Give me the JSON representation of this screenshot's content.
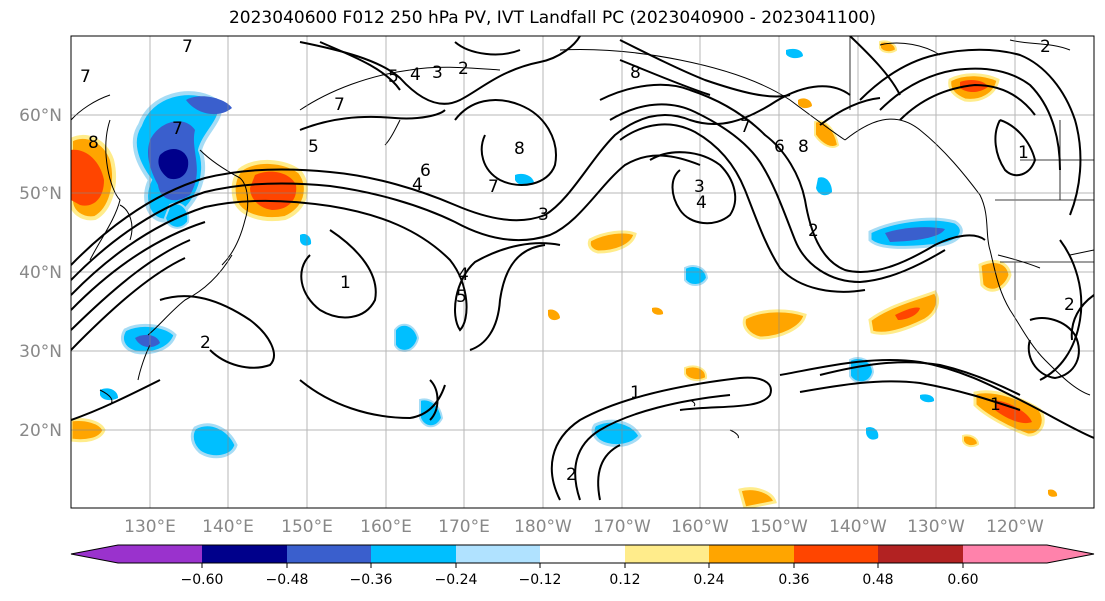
{
  "title": "2023040600 F012 250 hPa PV, IVT Landfall PC (2023040900 - 2023041100)",
  "map": {
    "lon_labels": [
      "130°E",
      "140°E",
      "150°E",
      "160°E",
      "170°E",
      "180°W",
      "170°W",
      "160°W",
      "150°W",
      "140°W",
      "130°W",
      "120°W"
    ],
    "lat_labels": [
      "60°N",
      "50°N",
      "40°N",
      "30°N",
      "20°N"
    ],
    "contour_labels": [
      "7",
      "7",
      "8",
      "5",
      "4",
      "3",
      "2",
      "7",
      "6",
      "5",
      "4",
      "7",
      "8",
      "7",
      "3",
      "1",
      "4",
      "5",
      "8",
      "8",
      "7",
      "6",
      "2",
      "3",
      "4",
      "2",
      "1",
      "2",
      "1",
      "1",
      "2",
      "2"
    ]
  },
  "colorbar": {
    "colors": [
      "#9a32cd",
      "#00008b",
      "#3a5fcd",
      "#00bfff",
      "#b0e2ff",
      "#ffffff",
      "#ffec8b",
      "#ffa500",
      "#ff4500",
      "#b22222",
      "#ff82ab"
    ],
    "tick_labels": [
      "−0.60",
      "−0.48",
      "−0.36",
      "−0.24",
      "−0.12",
      "0.12",
      "0.24",
      "0.36",
      "0.48",
      "0.60"
    ]
  }
}
